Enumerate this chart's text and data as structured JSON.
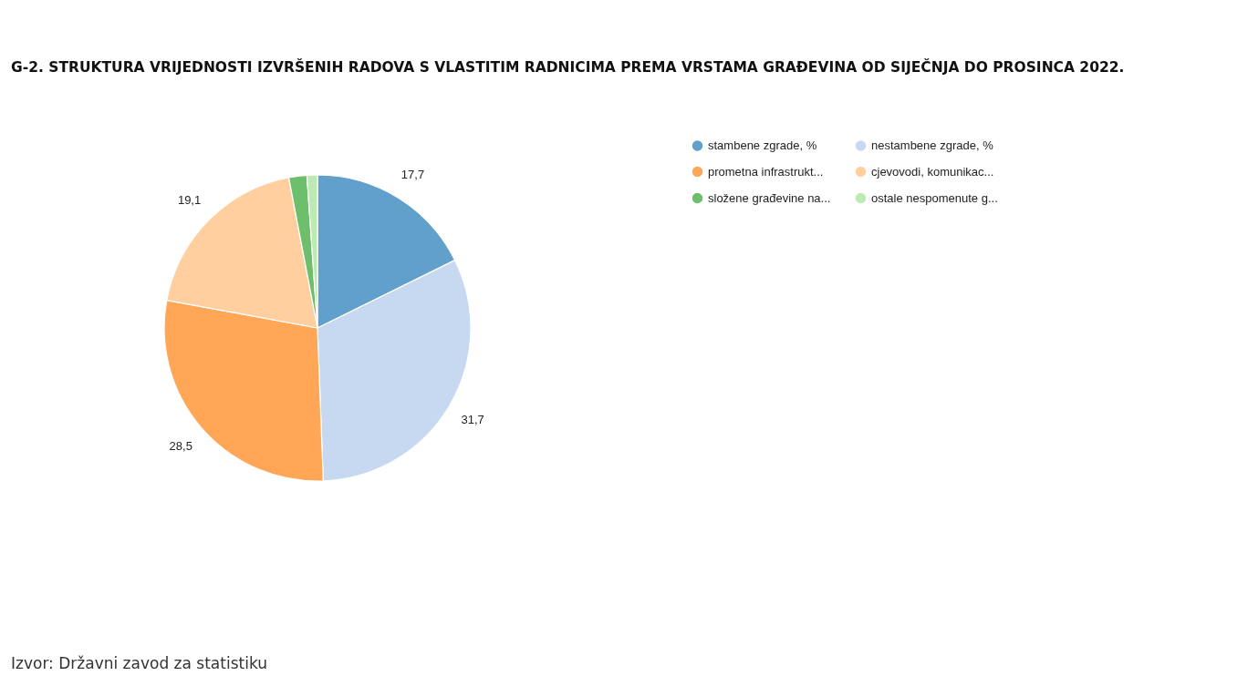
{
  "chart_data": {
    "type": "pie",
    "title": "G-2. STRUKTURA VRIJEDNOSTI IZVRŠENIH RADOVA S VLASTITIM RADNICIMA PREMA VRSTAMA GRAĐEVINA OD SIJEČNJA DO PROSINCA 2022.",
    "categories": [
      "stambene zgrade, %",
      "nestambene zgrade, %",
      "prometna infrastrukt...",
      "cjevovodi, komunikac...",
      "složene građevine na...",
      "ostale nespomenute g..."
    ],
    "values": [
      17.7,
      31.7,
      28.5,
      19.1,
      1.9,
      1.1
    ],
    "colors": [
      "#61a0cb",
      "#c7d9f0",
      "#ffa657",
      "#ffcfa0",
      "#6dbf6b",
      "#bde9b3"
    ],
    "value_labels": [
      "17,7",
      "31,7",
      "28,5",
      "19,1",
      null,
      null
    ],
    "legend": "top right",
    "annotations": [
      "Izvor: Državni zavod za statistiku"
    ]
  }
}
